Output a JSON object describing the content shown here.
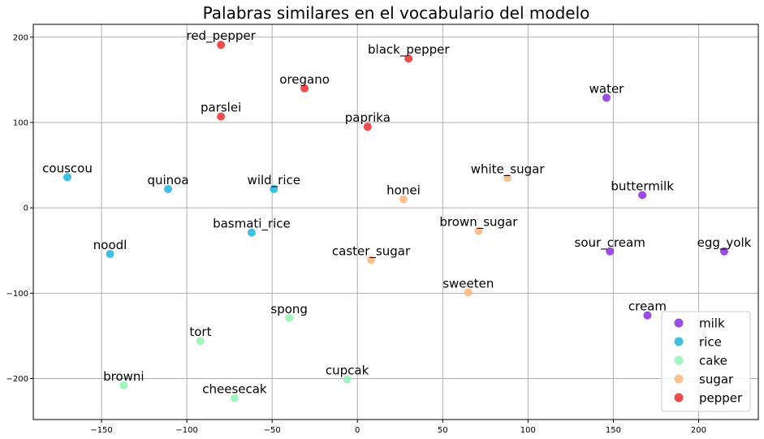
{
  "chart_data": {
    "type": "scatter",
    "title": "Palabras similares en el vocabulario del modelo",
    "xlabel": "",
    "ylabel": "",
    "xlim": [
      -190,
      235
    ],
    "ylim": [
      -248,
      215
    ],
    "xticks": [
      -150,
      -100,
      -50,
      0,
      50,
      100,
      150,
      200
    ],
    "yticks": [
      -200,
      -100,
      0,
      100,
      200
    ],
    "grid": true,
    "legend_position": "lower-right",
    "series": [
      {
        "name": "milk",
        "color": "#8a2be2",
        "points": [
          {
            "label": "water",
            "x": 146,
            "y": 129
          },
          {
            "label": "buttermilk",
            "x": 167,
            "y": 15
          },
          {
            "label": "sour_cream",
            "x": 148,
            "y": -51
          },
          {
            "label": "egg_yolk",
            "x": 215,
            "y": -51
          },
          {
            "label": "cream",
            "x": 170,
            "y": -126
          }
        ]
      },
      {
        "name": "rice",
        "color": "#1cb5e0",
        "points": [
          {
            "label": "couscou",
            "x": -170,
            "y": 36
          },
          {
            "label": "quinoa",
            "x": -111,
            "y": 22
          },
          {
            "label": "wild_rice",
            "x": -49,
            "y": 22
          },
          {
            "label": "basmati_rice",
            "x": -62,
            "y": -29
          },
          {
            "label": "noodl",
            "x": -145,
            "y": -54
          }
        ]
      },
      {
        "name": "cake",
        "color": "#8ff5b0",
        "points": [
          {
            "label": "spong",
            "x": -40,
            "y": -129
          },
          {
            "label": "tort",
            "x": -92,
            "y": -156
          },
          {
            "label": "cupcak",
            "x": -6,
            "y": -201
          },
          {
            "label": "browni",
            "x": -137,
            "y": -208
          },
          {
            "label": "cheesecak",
            "x": -72,
            "y": -223
          }
        ]
      },
      {
        "name": "sugar",
        "color": "#fab77a",
        "points": [
          {
            "label": "white_sugar",
            "x": 88,
            "y": 35
          },
          {
            "label": "honei",
            "x": 27,
            "y": 10
          },
          {
            "label": "brown_sugar",
            "x": 71,
            "y": -27
          },
          {
            "label": "caster_sugar",
            "x": 8,
            "y": -61
          },
          {
            "label": "sweeten",
            "x": 65,
            "y": -99
          }
        ]
      },
      {
        "name": "pepper",
        "color": "#f02a2a",
        "points": [
          {
            "label": "red_pepper",
            "x": -80,
            "y": 191
          },
          {
            "label": "black_pepper",
            "x": 30,
            "y": 175
          },
          {
            "label": "oregano",
            "x": -31,
            "y": 140
          },
          {
            "label": "parslei",
            "x": -80,
            "y": 107
          },
          {
            "label": "paprika",
            "x": 6,
            "y": 95
          }
        ]
      }
    ]
  }
}
